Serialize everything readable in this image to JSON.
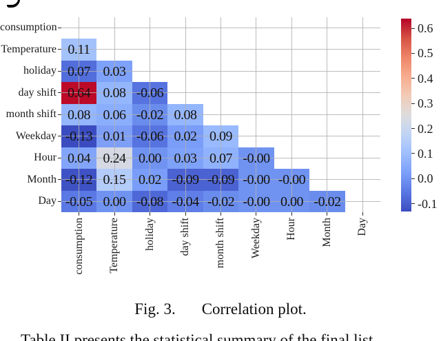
{
  "figure": {
    "caption_prefix": "Fig. 3.",
    "caption_text": "Correlation plot.",
    "body_text_partial": "Table II presents the statistical summary of the final list"
  },
  "chart_data": {
    "type": "heatmap",
    "title": "",
    "xlabel": "",
    "ylabel": "",
    "shape": "lower-triangle-without-diagonal",
    "grid": true,
    "categories": [
      "consumption",
      "Temperature",
      "holiday",
      "day shift",
      "month shift",
      "Weekday",
      "Hour",
      "Month",
      "Day"
    ],
    "rows": [
      {
        "label": "consumption",
        "values": [],
        "colors": []
      },
      {
        "label": "Temperature",
        "values": [
          "0.11"
        ],
        "colors": [
          "#a3c2fb"
        ]
      },
      {
        "label": "holiday",
        "values": [
          "0.07",
          "0.03"
        ],
        "colors": [
          "#526edb",
          "#7ea1f9"
        ]
      },
      {
        "label": "day shift",
        "values": [
          "0.64",
          "0.08",
          "-0.06"
        ],
        "colors": [
          "#bc0a29",
          "#94b6fd",
          "#5673e0"
        ]
      },
      {
        "label": "month shift",
        "values": [
          "0.08",
          "0.06",
          "-0.02",
          "0.08"
        ],
        "colors": [
          "#94b6fd",
          "#8baefc",
          "#6a8ded",
          "#94b6fd"
        ]
      },
      {
        "label": "Weekday",
        "values": [
          "-0.13",
          "0.01",
          "-0.06",
          "0.02",
          "0.09"
        ],
        "colors": [
          "#3b4cc0",
          "#7f9ff7",
          "#5673e0",
          "#799df8",
          "#99bafe"
        ]
      },
      {
        "label": "Hour",
        "values": [
          "0.04",
          "0.24",
          "0.00",
          "0.03",
          "0.07",
          "-0.00"
        ],
        "colors": [
          "#82a5fa",
          "#d6d9e4",
          "#7093f2",
          "#7ea1f9",
          "#90b2fd",
          "#7093f2"
        ]
      },
      {
        "label": "Month",
        "values": [
          "-0.12",
          "0.15",
          "0.02",
          "-0.09",
          "-0.09",
          "-0.00",
          "-0.00"
        ],
        "colors": [
          "#3f52c5",
          "#b4ccf9",
          "#799df8",
          "#4b62d2",
          "#4b62d2",
          "#7093f2",
          "#7093f2"
        ]
      },
      {
        "label": "Day",
        "values": [
          "-0.05",
          "0.00",
          "-0.08",
          "-0.04",
          "-0.02",
          "-0.00",
          "0.00",
          "-0.02"
        ],
        "colors": [
          "#5a79e4",
          "#7093f2",
          "#4e68d7",
          "#5f7ee7",
          "#6a8ded",
          "#7093f2",
          "#7093f2",
          "#6a8ded"
        ]
      }
    ],
    "colorbar": {
      "colormap": "coolwarm",
      "vmin": -0.13,
      "vmax": 0.64,
      "tick_labels": [
        "0.6",
        "0.5",
        "0.4",
        "0.3",
        "0.2",
        "0.1",
        "0.0",
        "-0.1"
      ],
      "tick_values": [
        0.6,
        0.5,
        0.4,
        0.3,
        0.2,
        0.1,
        0.0,
        -0.1
      ],
      "gradient_stops": [
        "#3b4cc0",
        "#5977e3",
        "#7b9ff9",
        "#9ebeff",
        "#c0d4f5",
        "#dddcdc",
        "#f2cbb7",
        "#f7ac8e",
        "#ee8468",
        "#d65244",
        "#b40426"
      ]
    }
  }
}
